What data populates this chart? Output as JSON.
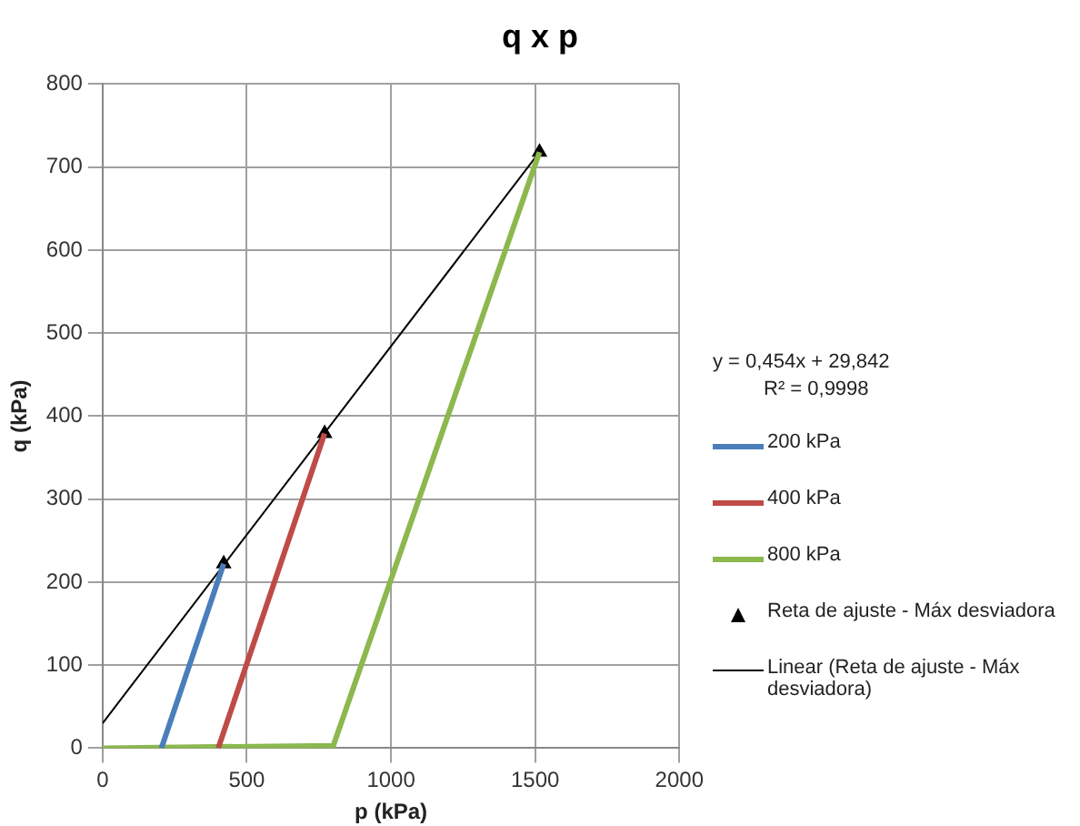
{
  "chart_data": {
    "type": "line",
    "title": "q x p",
    "xlabel": "p (kPa)",
    "ylabel": "q (kPa)",
    "xlim": [
      0,
      2000
    ],
    "xticks": [
      0,
      500,
      1000,
      1500,
      2000
    ],
    "ylim": [
      0,
      800
    ],
    "yticks": [
      0,
      100,
      200,
      300,
      400,
      500,
      600,
      700,
      800
    ],
    "grid": true,
    "legend": "right",
    "annotations": [
      "y = 0,454x + 29,842",
      "R² = 0,9998"
    ],
    "series": [
      {
        "name": "200 kPa",
        "color": "#4a7ebb",
        "marker": "none",
        "x": [
          204,
          420
        ],
        "values": [
          0,
          222
        ]
      },
      {
        "name": "400 kPa",
        "color": "#be4b48",
        "marker": "none",
        "x": [
          401,
          770
        ],
        "values": [
          0,
          379
        ]
      },
      {
        "name": "800 kPa",
        "color": "#8cb84e",
        "marker": "none",
        "x": [
          0,
          800,
          1515
        ],
        "values": [
          0,
          3,
          718
        ]
      },
      {
        "name": "Reta de ajuste - Máx desviadora",
        "color": "#000000",
        "type": "scatter",
        "marker": "triangle",
        "x": [
          420,
          770,
          1515
        ],
        "values": [
          222,
          379,
          718
        ]
      },
      {
        "name": "Linear (Reta de ajuste - Máx desviadora)",
        "color": "#000000",
        "marker": "none",
        "line_style": "solid",
        "x": [
          0,
          1515
        ],
        "values": [
          30,
          718
        ]
      }
    ]
  }
}
